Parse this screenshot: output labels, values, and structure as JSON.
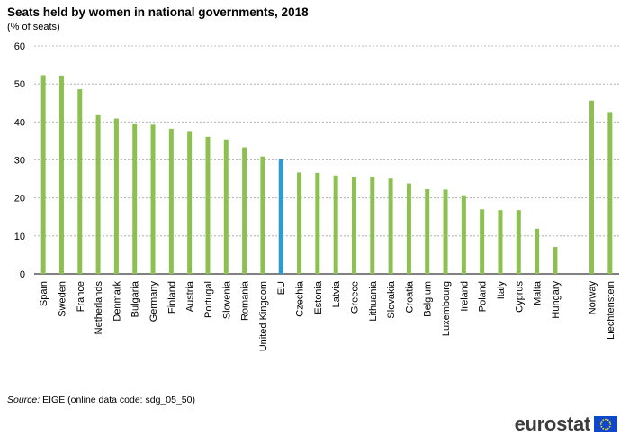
{
  "title": "Seats held by women in national governments, 2018",
  "subtitle": "(% of seats)",
  "source_label": "Source:",
  "source_text": " EIGE (online data code: sdg_05_50)",
  "logo_text": "eurostat",
  "chart_data": {
    "type": "bar",
    "title": "Seats held by women in national governments, 2018",
    "ylabel": "(% of seats)",
    "ylim": [
      0,
      60
    ],
    "yticks": [
      0,
      10,
      20,
      30,
      40,
      50,
      60
    ],
    "grid": true,
    "categories": [
      "Spain",
      "Sweden",
      "France",
      "Netherlands",
      "Denmark",
      "Bulgaria",
      "Germany",
      "Finland",
      "Austria",
      "Portugal",
      "Slovenia",
      "Romania",
      "United Kingdom",
      "EU",
      "Czechia",
      "Estonia",
      "Latvia",
      "Greece",
      "Lithuania",
      "Slovakia",
      "Croatia",
      "Belgium",
      "Luxembourg",
      "Ireland",
      "Poland",
      "Italy",
      "Cyprus",
      "Malta",
      "Hungary",
      "",
      "Norway",
      "Liechtenstein"
    ],
    "values": [
      52.3,
      52.2,
      48.6,
      41.8,
      40.9,
      39.4,
      39.3,
      38.2,
      37.6,
      36.1,
      35.4,
      33.3,
      30.9,
      30.2,
      26.7,
      26.6,
      25.9,
      25.5,
      25.5,
      25.1,
      23.8,
      22.3,
      22.2,
      20.7,
      17.0,
      16.8,
      16.8,
      11.9,
      7.1,
      null,
      45.6,
      42.6
    ],
    "highlight": "EU",
    "colors": {
      "bar": "#8cc152",
      "highlight": "#2e9ad0",
      "grid": "#a6a6a6"
    }
  }
}
